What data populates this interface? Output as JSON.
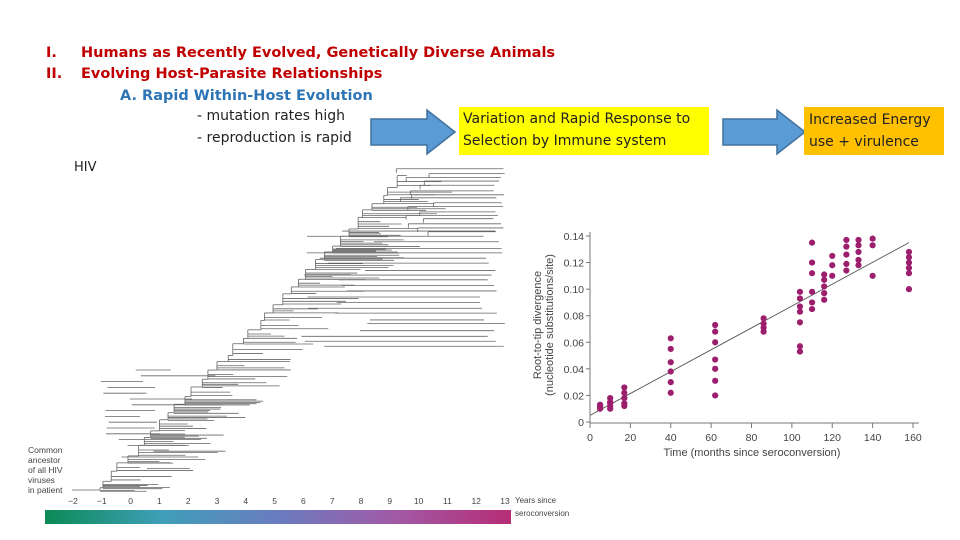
{
  "outline": {
    "item1_num": "I.",
    "item1_text": "Humans as Recently Evolved, Genetically Diverse Animals",
    "item2_num": "II.",
    "item2_text": "Evolving Host-Parasite Relationships",
    "sub_a": "A. Rapid Within-Host Evolution",
    "bullet1": "- mutation rates high",
    "bullet2": "- reproduction is rapid"
  },
  "box1": {
    "line1": "Variation and Rapid Response to",
    "line2": "Selection by Immune system"
  },
  "box2": {
    "line1": "Increased Energy",
    "line2": "use + virulence"
  },
  "tree": {
    "label": "HIV",
    "ancestor_lines": [
      "Common",
      "ancestor",
      "of all HIV",
      "viruses",
      "in patient"
    ],
    "axis_ticks": [
      "−2",
      "−1",
      "0",
      "1",
      "2",
      "3",
      "4",
      "5",
      "6",
      "7",
      "8",
      "9",
      "10",
      "11",
      "12",
      "13"
    ],
    "axis_label_lines": [
      "Years since",
      "seroconversion"
    ]
  },
  "colors": {
    "arrow": "#5b9bd5",
    "arrow_edge": "#41719c",
    "points": "#9c1f6e",
    "yellow": "#ffff00",
    "orange": "#ffc000"
  },
  "chart_data": {
    "type": "scatter",
    "xlabel": "Time (months since seroconversion)",
    "ylabel_lines": [
      "Root-to-tip divergence",
      "(nucleotide substitutions/site)"
    ],
    "xlim": [
      0,
      160
    ],
    "ylim": [
      0,
      0.14
    ],
    "x_ticks": [
      0,
      20,
      40,
      60,
      80,
      100,
      120,
      140,
      160
    ],
    "y_ticks": [
      "0",
      "0.02",
      "0.04",
      "0.06",
      "0.08",
      "0.10",
      "0.12",
      "0.14"
    ],
    "trend_line": {
      "x": [
        0,
        158
      ],
      "y": [
        0.005,
        0.135
      ]
    },
    "points": [
      [
        5,
        0.011
      ],
      [
        5,
        0.013
      ],
      [
        5,
        0.01
      ],
      [
        5,
        0.012
      ],
      [
        10,
        0.015
      ],
      [
        10,
        0.012
      ],
      [
        10,
        0.018
      ],
      [
        10,
        0.01
      ],
      [
        10,
        0.014
      ],
      [
        17,
        0.022
      ],
      [
        17,
        0.018
      ],
      [
        17,
        0.014
      ],
      [
        17,
        0.026
      ],
      [
        17,
        0.012
      ],
      [
        40,
        0.063
      ],
      [
        40,
        0.055
      ],
      [
        40,
        0.045
      ],
      [
        40,
        0.03
      ],
      [
        40,
        0.038
      ],
      [
        40,
        0.022
      ],
      [
        62,
        0.073
      ],
      [
        62,
        0.068
      ],
      [
        62,
        0.06
      ],
      [
        62,
        0.04
      ],
      [
        62,
        0.031
      ],
      [
        62,
        0.047
      ],
      [
        62,
        0.02
      ],
      [
        86,
        0.078
      ],
      [
        86,
        0.074
      ],
      [
        86,
        0.071
      ],
      [
        86,
        0.068
      ],
      [
        104,
        0.098
      ],
      [
        104,
        0.093
      ],
      [
        104,
        0.087
      ],
      [
        104,
        0.083
      ],
      [
        104,
        0.075
      ],
      [
        104,
        0.057
      ],
      [
        104,
        0.053
      ],
      [
        110,
        0.135
      ],
      [
        110,
        0.12
      ],
      [
        110,
        0.112
      ],
      [
        110,
        0.098
      ],
      [
        110,
        0.09
      ],
      [
        110,
        0.085
      ],
      [
        116,
        0.111
      ],
      [
        116,
        0.107
      ],
      [
        116,
        0.102
      ],
      [
        116,
        0.097
      ],
      [
        116,
        0.092
      ],
      [
        120,
        0.125
      ],
      [
        120,
        0.118
      ],
      [
        120,
        0.11
      ],
      [
        127,
        0.137
      ],
      [
        127,
        0.132
      ],
      [
        127,
        0.126
      ],
      [
        127,
        0.119
      ],
      [
        127,
        0.114
      ],
      [
        133,
        0.137
      ],
      [
        133,
        0.133
      ],
      [
        133,
        0.128
      ],
      [
        133,
        0.122
      ],
      [
        133,
        0.118
      ],
      [
        140,
        0.138
      ],
      [
        140,
        0.133
      ],
      [
        140,
        0.11
      ],
      [
        158,
        0.128
      ],
      [
        158,
        0.124
      ],
      [
        158,
        0.12
      ],
      [
        158,
        0.116
      ],
      [
        158,
        0.112
      ],
      [
        158,
        0.1
      ]
    ]
  }
}
